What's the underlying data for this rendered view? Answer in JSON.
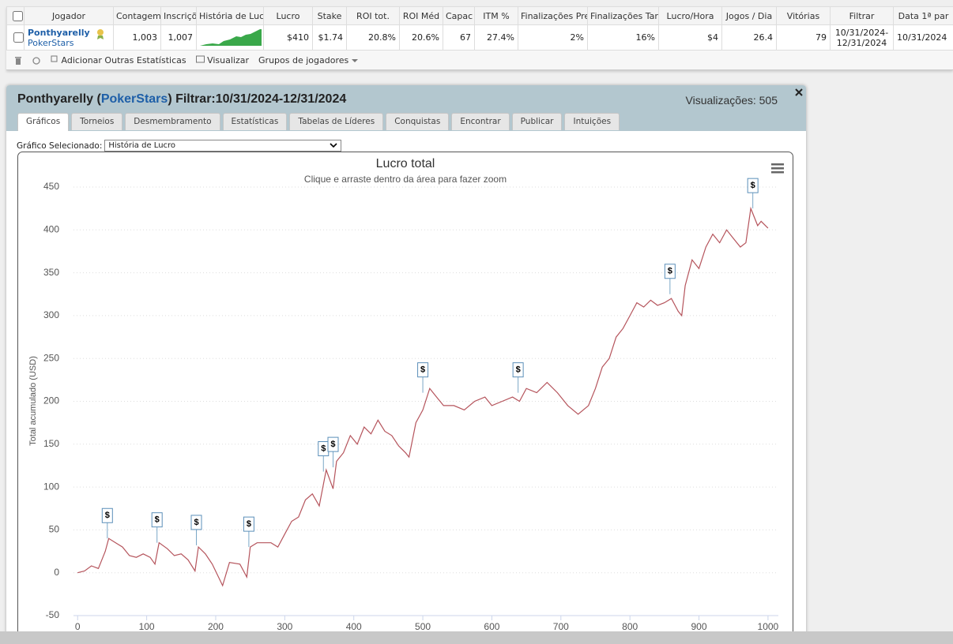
{
  "table": {
    "headers": [
      "Jogador",
      "Contagem",
      "Inscriçõ",
      "História de Luc",
      "Lucro",
      "Stake",
      "ROI tot.",
      "ROI Méd",
      "Capac",
      "ITM %",
      "Finalizações Pre",
      "Finalizações Tar",
      "Lucro/Hora",
      "Jogos / Dia",
      "Vitórias",
      "Filtrar",
      "Data 1ª par"
    ],
    "row": {
      "player": "Ponthyarelly",
      "site": "PokerStars",
      "cells": [
        "1,003",
        "1,007",
        "$410",
        "$1.74",
        "20.8%",
        "20.6%",
        "67",
        "27.4%",
        "2%",
        "16%",
        "$4",
        "26.4",
        "79",
        "10/31/2024-12/31/2024",
        "10/31/2024"
      ]
    },
    "toolbar": [
      "Adicionar Outras Estatísticas",
      "Visualizar",
      "Grupos de jogadores"
    ]
  },
  "dialog": {
    "title": [
      "Ponthyarelly (",
      "PokerStars",
      ") Filtrar:10/31/2024-12/31/2024"
    ],
    "views": "Visualizações: 505",
    "tabs": [
      "Gráficos",
      "Torneios",
      "Desmembramento",
      "Estatísticas",
      "Tabelas de Líderes",
      "Conquistas",
      "Encontrar",
      "Publicar",
      "Intuições"
    ],
    "selector_label": "Gráfico Selecionado:",
    "selected": "História de Lucro"
  },
  "chart_data": {
    "type": "line",
    "title": "Lucro total",
    "subtitle": "Clique e arraste dentro da área para fazer zoom",
    "y_label": "Total acumulado (USD)",
    "color": "#b5545c",
    "x": [
      0,
      10,
      20,
      30,
      40,
      45,
      55,
      65,
      75,
      85,
      95,
      105,
      112,
      118,
      130,
      140,
      150,
      160,
      170,
      175,
      185,
      195,
      210,
      220,
      235,
      245,
      250,
      260,
      280,
      290,
      300,
      310,
      320,
      330,
      340,
      350,
      360,
      370,
      375,
      385,
      395,
      405,
      415,
      425,
      435,
      445,
      455,
      465,
      475,
      480,
      490,
      500,
      510,
      520,
      530,
      545,
      560,
      575,
      590,
      600,
      615,
      630,
      640,
      650,
      665,
      680,
      695,
      710,
      725,
      740,
      750,
      760,
      770,
      780,
      790,
      800,
      810,
      820,
      830,
      840,
      850,
      860,
      870,
      875,
      880,
      890,
      900,
      910,
      920,
      930,
      940,
      950,
      960,
      968,
      975,
      985,
      990,
      1000
    ],
    "values": [
      0,
      2,
      8,
      5,
      25,
      40,
      35,
      30,
      20,
      18,
      22,
      18,
      10,
      35,
      28,
      20,
      22,
      15,
      2,
      30,
      22,
      10,
      -15,
      12,
      10,
      -5,
      30,
      35,
      35,
      30,
      45,
      60,
      65,
      85,
      92,
      78,
      120,
      98,
      130,
      140,
      160,
      150,
      170,
      162,
      178,
      165,
      160,
      148,
      140,
      135,
      175,
      190,
      215,
      205,
      195,
      195,
      190,
      200,
      205,
      195,
      200,
      205,
      200,
      215,
      210,
      222,
      210,
      195,
      185,
      195,
      215,
      240,
      250,
      275,
      285,
      300,
      315,
      310,
      318,
      312,
      315,
      320,
      305,
      300,
      335,
      365,
      355,
      380,
      395,
      385,
      400,
      390,
      380,
      385,
      425,
      405,
      410,
      402
    ],
    "flags": [
      {
        "x": 43,
        "y": 40,
        "label": "$"
      },
      {
        "x": 115,
        "y": 35,
        "label": "$"
      },
      {
        "x": 172,
        "y": 32,
        "label": "$"
      },
      {
        "x": 248,
        "y": 30,
        "label": "$"
      },
      {
        "x": 356,
        "y": 118,
        "label": "$"
      },
      {
        "x": 370,
        "y": 123,
        "label": "$"
      },
      {
        "x": 500,
        "y": 210,
        "label": "$"
      },
      {
        "x": 638,
        "y": 210,
        "label": "$"
      },
      {
        "x": 858,
        "y": 325,
        "label": "$"
      },
      {
        "x": 978,
        "y": 425,
        "label": "$"
      }
    ],
    "xlim": [
      -6,
      1015
    ],
    "ylim": [
      -50,
      450
    ],
    "xticks": [
      0,
      100,
      200,
      300,
      400,
      500,
      600,
      700,
      800,
      900,
      1000
    ],
    "yticks": [
      -50,
      0,
      50,
      100,
      150,
      200,
      250,
      300,
      350,
      400,
      450
    ],
    "grid": true
  }
}
